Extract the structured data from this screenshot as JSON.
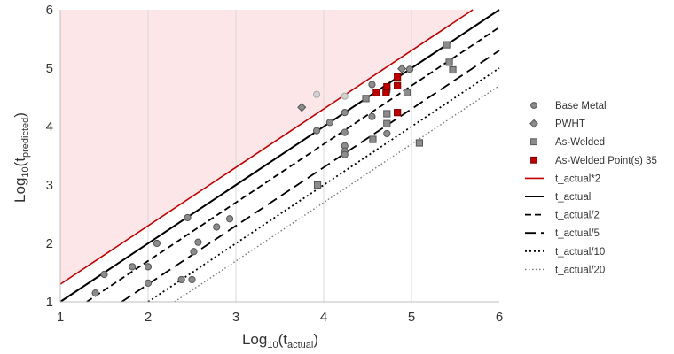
{
  "chart_data": {
    "type": "scatter",
    "xlabel": "Log10(tactual)",
    "ylabel": "Log10(tpredicted)",
    "axis_titles": {
      "x": {
        "base": "Log",
        "sub": "10",
        "open": "(t",
        "subscript": "actual",
        "close": ")"
      },
      "y": {
        "base": "Log",
        "sub": "10",
        "open": "(t",
        "subscript": "predicted",
        "close": ")"
      }
    },
    "xlim": [
      1,
      6
    ],
    "ylim": [
      1,
      6
    ],
    "xticks": [
      "1",
      "2",
      "3",
      "4",
      "5",
      "6"
    ],
    "yticks": [
      "1",
      "2",
      "3",
      "4",
      "5",
      "6"
    ],
    "grid": "vertical",
    "shaded_region": {
      "description": "area above t_actual*2 line",
      "color": "#fde6e8"
    },
    "legend_position": "right",
    "series": [
      {
        "name": "Base Metal",
        "marker": "circle",
        "color": "#8c8c8c",
        "edge": "#555555",
        "points": [
          [
            1.4,
            1.15
          ],
          [
            1.5,
            1.47
          ],
          [
            1.82,
            1.6
          ],
          [
            2.0,
            1.6
          ],
          [
            2.0,
            1.32
          ],
          [
            2.1,
            2.0
          ],
          [
            2.45,
            2.44
          ],
          [
            2.38,
            1.38
          ],
          [
            2.5,
            1.38
          ],
          [
            2.52,
            1.86
          ],
          [
            2.57,
            2.02
          ],
          [
            2.78,
            2.28
          ],
          [
            2.93,
            2.42
          ],
          [
            3.92,
            3.93
          ],
          [
            4.07,
            4.07
          ],
          [
            4.24,
            4.24
          ],
          [
            4.24,
            3.9
          ],
          [
            4.24,
            3.67
          ],
          [
            4.24,
            3.58
          ],
          [
            4.24,
            3.52
          ],
          [
            4.55,
            4.17
          ],
          [
            4.55,
            4.72
          ],
          [
            4.72,
            3.88
          ],
          [
            4.72,
            4.6
          ],
          [
            4.98,
            4.98
          ]
        ]
      },
      {
        "name": "PWHT",
        "marker": "diamond",
        "color": "#8c8c8c",
        "edge": "#555555",
        "points": [
          [
            3.75,
            4.33
          ],
          [
            4.89,
            4.99
          ]
        ]
      },
      {
        "name": "As-Welded",
        "marker": "square",
        "color": "#8c8c8c",
        "edge": "#555555",
        "points": [
          [
            3.93,
            3.0
          ],
          [
            4.48,
            4.48
          ],
          [
            4.56,
            3.78
          ],
          [
            4.72,
            4.22
          ],
          [
            4.72,
            4.05
          ],
          [
            4.95,
            4.58
          ],
          [
            5.09,
            3.72
          ],
          [
            5.4,
            5.4
          ],
          [
            5.43,
            5.1
          ],
          [
            5.47,
            4.97
          ]
        ]
      },
      {
        "name": "As-Welded Point(s) 35",
        "marker": "square",
        "color": "#c00000",
        "edge": "#7a0000",
        "points": [
          [
            4.6,
            4.58
          ],
          [
            4.71,
            4.58
          ],
          [
            4.72,
            4.68
          ],
          [
            4.84,
            4.7
          ],
          [
            4.84,
            4.85
          ],
          [
            4.84,
            4.24
          ]
        ]
      }
    ],
    "lines": [
      {
        "name": "t_actual*2",
        "offset": 0.30103,
        "color": "#c00000",
        "dash": "",
        "width": 1.6
      },
      {
        "name": "t_actual",
        "offset": 0,
        "color": "#000000",
        "dash": "",
        "width": 2
      },
      {
        "name": "t_actual/2",
        "offset": -0.30103,
        "color": "#000000",
        "dash": "7,4",
        "width": 1.8
      },
      {
        "name": "t_actual/5",
        "offset": -0.69897,
        "color": "#000000",
        "dash": "12,6",
        "width": 1.8
      },
      {
        "name": "t_actual/10",
        "offset": -1,
        "color": "#000000",
        "dash": "2,3",
        "width": 1.8
      },
      {
        "name": "t_actual/20",
        "offset": -1.30103,
        "color": "#777777",
        "dash": "1.5,2.5",
        "width": 1.4
      }
    ],
    "highlight_markers": [
      {
        "marker": "circle",
        "color": "#d0d0d0",
        "edge": "#aaaaaa",
        "points": [
          [
            3.92,
            4.55
          ],
          [
            4.24,
            4.52
          ]
        ]
      }
    ]
  }
}
